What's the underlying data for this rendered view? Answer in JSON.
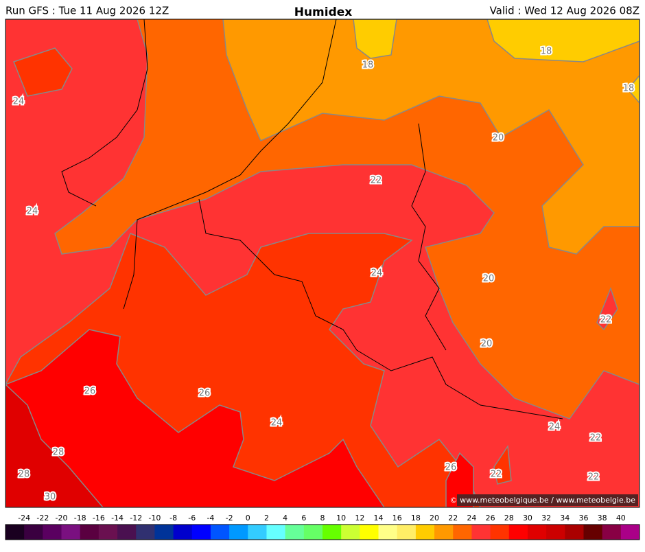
{
  "header": {
    "left": "Run GFS : Tue 11 Aug 2026 12Z",
    "title": "Humidex",
    "right": "Valid : Wed 12 Aug 2026 08Z"
  },
  "contour_labels": [
    "24",
    "18",
    "18",
    "18",
    "20",
    "24",
    "22",
    "24",
    "20",
    "22",
    "20",
    "26",
    "26",
    "24",
    "28",
    "28",
    "30",
    "24",
    "22",
    "26",
    "22",
    "22"
  ],
  "credit": "© www.meteobelgique.be / www.meteobelgie.be",
  "colorbar": {
    "labels": [
      -24,
      -22,
      -20,
      -18,
      -16,
      -14,
      -12,
      -10,
      -8,
      -6,
      -4,
      -2,
      0,
      2,
      4,
      6,
      8,
      10,
      12,
      14,
      16,
      18,
      20,
      22,
      24,
      26,
      28,
      30,
      32,
      34,
      36,
      38,
      40
    ],
    "colors": [
      "#1a0020",
      "#3a0040",
      "#5a0060",
      "#7a1080",
      "#5a0040",
      "#6a1050",
      "#4a1050",
      "#303070",
      "#003399",
      "#0000cc",
      "#0000ff",
      "#0055ff",
      "#0099ff",
      "#33ccff",
      "#66ffff",
      "#66ff99",
      "#66ff66",
      "#66ff00",
      "#ccff33",
      "#ffff00",
      "#ffff88",
      "#ffee66",
      "#ffcc00",
      "#ff9900",
      "#ff6600",
      "#ff3333",
      "#ff3300",
      "#ff0000",
      "#e00000",
      "#cc0000",
      "#aa0000",
      "#660000",
      "#880044",
      "#aa0088"
    ]
  }
}
